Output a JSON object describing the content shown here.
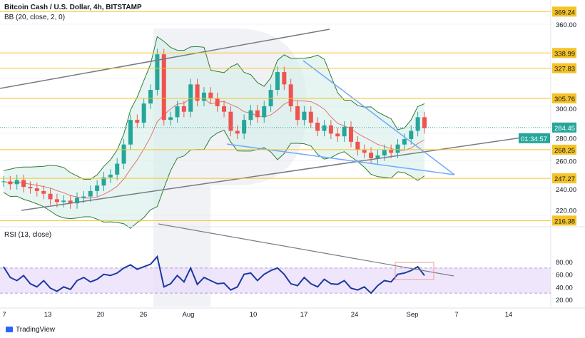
{
  "header": {
    "title": "Bitcoin Cash / U.S. Dollar, 4h, BITSTAMP",
    "bb_label": "BB (20, close, 2, 0)",
    "rsi_label": "RSI (13, close)",
    "brand": "TradingView"
  },
  "chart_data": [
    {
      "type": "line",
      "title": "Bitcoin Cash / U.S. Dollar, 4h, BITSTAMP",
      "ylim": [
        210,
        375
      ],
      "price_ticks": [
        "360.00",
        "300.00",
        "280.00",
        "260.00",
        "240.00",
        "220.00"
      ],
      "price_tick_values": [
        360,
        300,
        280,
        260,
        240,
        220
      ],
      "levels": [
        {
          "label": "369.24",
          "v": 369.24
        },
        {
          "label": "338.99",
          "v": 338.99
        },
        {
          "label": "327.83",
          "v": 327.83
        },
        {
          "label": "305.76",
          "v": 305.76
        },
        {
          "label": "268.25",
          "v": 268.25
        },
        {
          "label": "247.27",
          "v": 247.27
        },
        {
          "label": "216.38",
          "v": 216.38
        }
      ],
      "last_price": {
        "label": "284.45",
        "v": 284.45,
        "countdown": "01:34:57"
      },
      "close": [
        245,
        243,
        246,
        241,
        240,
        238,
        236,
        232,
        230,
        231,
        229,
        233,
        234,
        238,
        242,
        248,
        250,
        258,
        272,
        290,
        288,
        302,
        312,
        338,
        290,
        292,
        300,
        296,
        316,
        304,
        310,
        306,
        300,
        296,
        282,
        280,
        290,
        297,
        292,
        300,
        312,
        325,
        316,
        300,
        290,
        296,
        288,
        282,
        286,
        280,
        278,
        285,
        274,
        268,
        266,
        262,
        264,
        268,
        266,
        272,
        276,
        282,
        292,
        284
      ],
      "x_labels": [
        "7",
        "13",
        "20",
        "26",
        "Aug",
        "10",
        "17",
        "24",
        "Sep",
        "7",
        "14"
      ]
    },
    {
      "type": "line",
      "title": "RSI (13, close)",
      "ylim": [
        10,
        95
      ],
      "ticks": [
        "80.00",
        "60.00",
        "40.00",
        "20.00"
      ],
      "tick_values": [
        80,
        60,
        40,
        20
      ],
      "rsi": [
        72,
        55,
        50,
        58,
        45,
        40,
        50,
        38,
        33,
        40,
        36,
        50,
        55,
        48,
        52,
        60,
        58,
        62,
        70,
        75,
        68,
        72,
        76,
        88,
        40,
        45,
        58,
        48,
        70,
        44,
        55,
        50,
        45,
        46,
        35,
        40,
        60,
        62,
        50,
        60,
        66,
        70,
        60,
        45,
        42,
        55,
        45,
        40,
        52,
        45,
        44,
        50,
        38,
        35,
        40,
        30,
        42,
        50,
        48,
        60,
        62,
        66,
        72,
        58
      ]
    }
  ],
  "colors": {
    "level": "#f5c327",
    "teal": "#26a69a",
    "bb": "#2e7d32",
    "ma": "#e57373",
    "rsi": "#1a3aa0",
    "trend": "#6fa8ff"
  }
}
